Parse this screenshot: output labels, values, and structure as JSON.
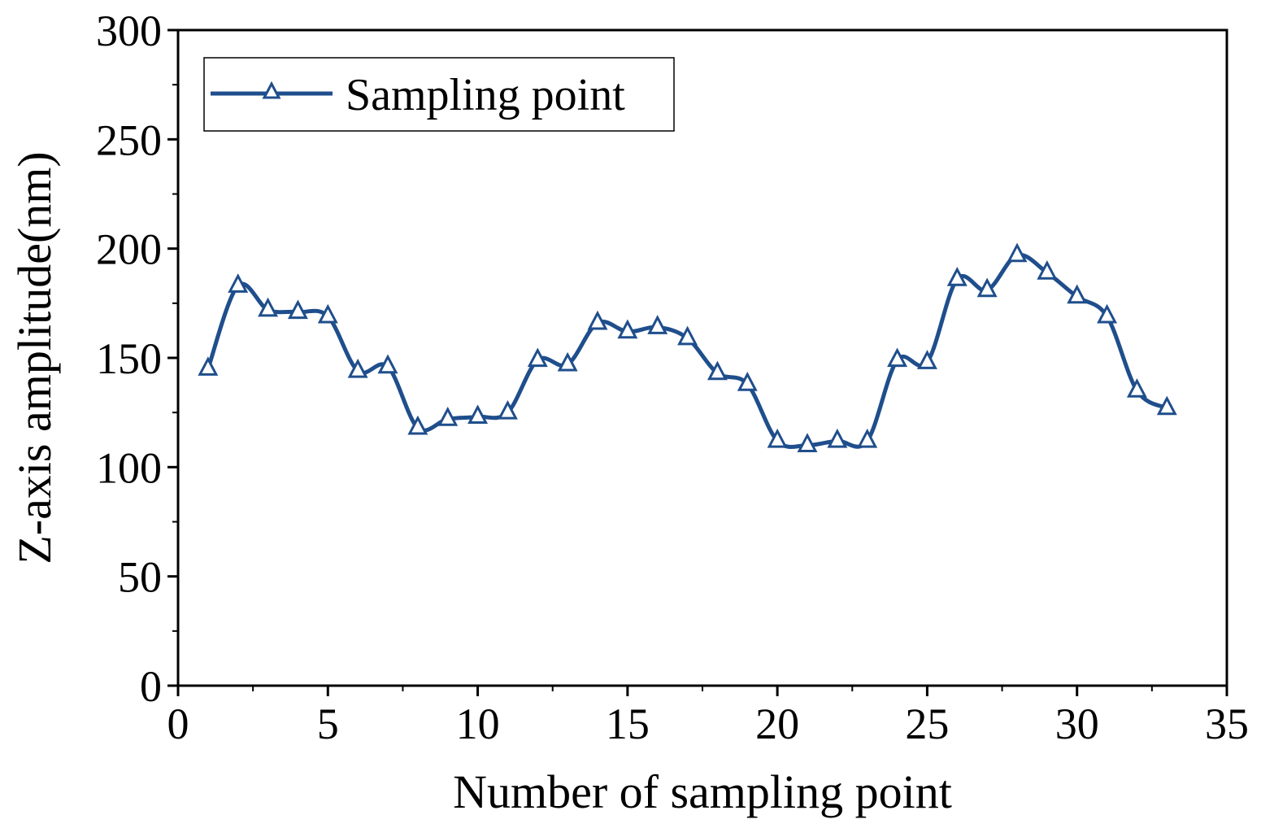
{
  "chart_data": {
    "type": "line",
    "title": "",
    "xlabel": "Number of sampling point",
    "ylabel": "Z-axis amplitude(nm)",
    "xlim": [
      0,
      35
    ],
    "ylim": [
      0,
      300
    ],
    "x_ticks": [
      0,
      5,
      10,
      15,
      20,
      25,
      30,
      35
    ],
    "y_ticks": [
      0,
      50,
      100,
      150,
      200,
      250,
      300
    ],
    "x_tick_labels": [
      "0",
      "5",
      "10",
      "15",
      "20",
      "25",
      "30",
      "35"
    ],
    "y_tick_labels": [
      "0",
      "50",
      "100",
      "150",
      "200",
      "250",
      "300"
    ],
    "grid": false,
    "legend_position": "top-left",
    "marker": "open-triangle",
    "smoothed": true,
    "series": [
      {
        "name": "Sampling point",
        "color": "#1f4e8c",
        "x": [
          1,
          2,
          3,
          4,
          5,
          6,
          7,
          8,
          9,
          10,
          11,
          12,
          13,
          14,
          15,
          16,
          17,
          18,
          19,
          20,
          21,
          22,
          23,
          24,
          25,
          26,
          27,
          28,
          29,
          30,
          31,
          32,
          33
        ],
        "values": [
          145,
          183,
          172,
          171,
          169,
          144,
          146,
          118,
          122,
          123,
          125,
          149,
          147,
          166,
          162,
          164,
          159,
          143,
          138,
          112,
          110,
          112,
          112,
          149,
          148,
          186,
          181,
          197,
          189,
          178,
          169,
          135,
          127
        ]
      }
    ]
  }
}
